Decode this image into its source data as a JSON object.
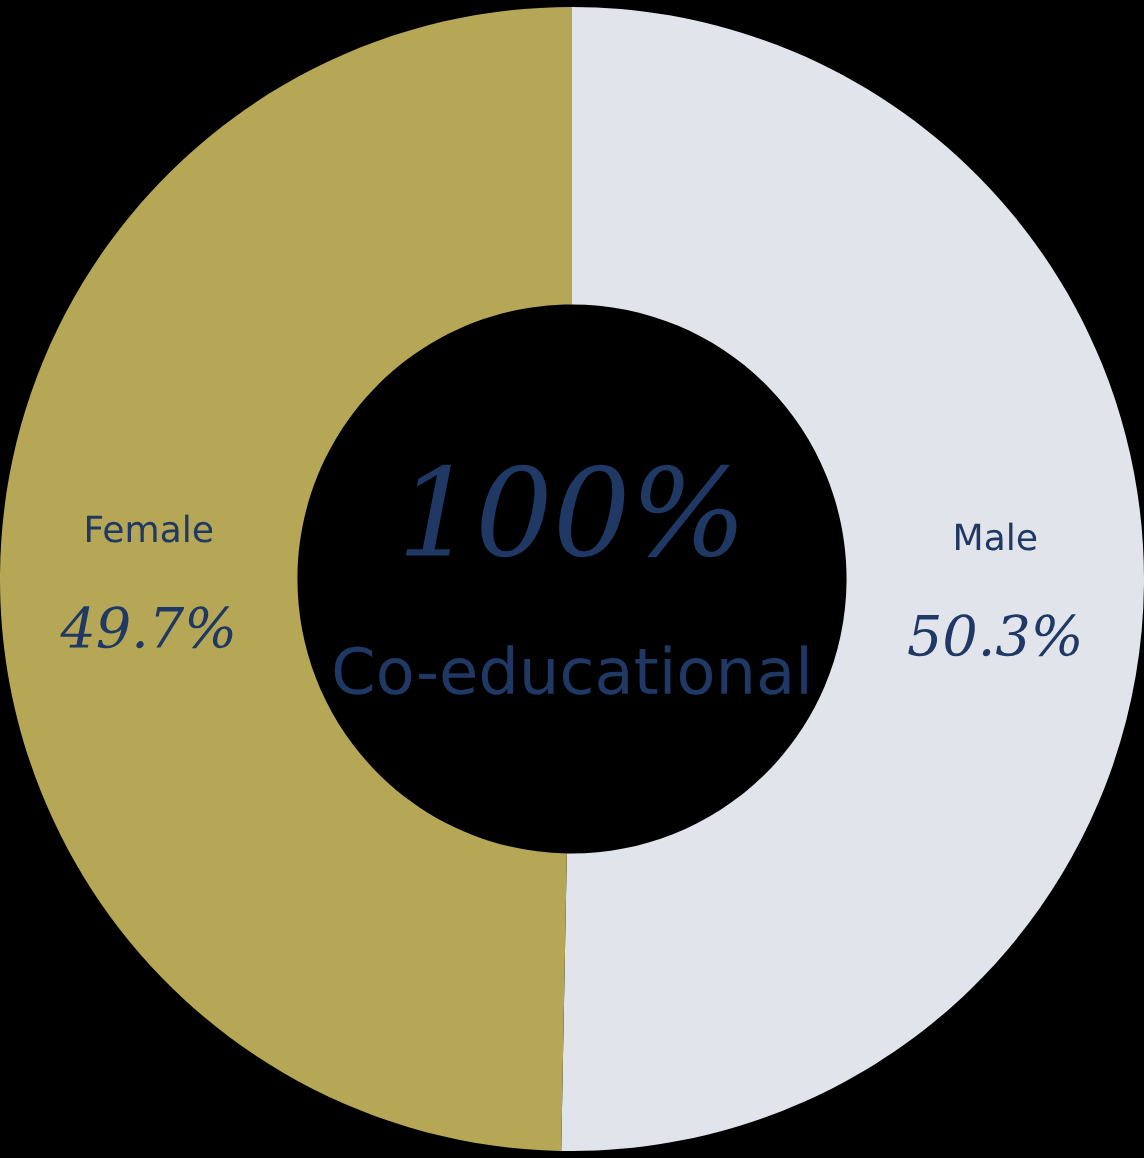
{
  "chart_data": {
    "type": "donut",
    "categories": [
      "Male",
      "Female"
    ],
    "values": [
      50.3,
      49.7
    ],
    "colors": [
      "#e1e4eb",
      "#b5a756"
    ],
    "value_labels": [
      "50.3%",
      "49.7%"
    ],
    "annotations": [
      "100%",
      "Co-educational"
    ]
  }
}
